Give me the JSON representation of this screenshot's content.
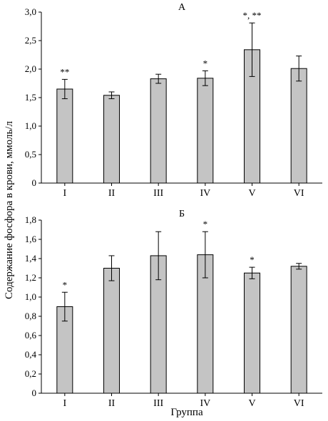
{
  "shared": {
    "ylabel": "Содержание фосфора в крови, ммоль/л",
    "xlabel": "Группа",
    "colors": {
      "bar_fill": "#c4c4c4",
      "bar_stroke": "#000000",
      "axis": "#000000"
    }
  },
  "chart_data": [
    {
      "type": "bar",
      "title": "А",
      "categories": [
        "I",
        "II",
        "III",
        "IV",
        "V",
        "VI"
      ],
      "values": [
        1.65,
        1.54,
        1.83,
        1.84,
        2.34,
        2.01
      ],
      "error": [
        0.17,
        0.06,
        0.08,
        0.13,
        0.47,
        0.22
      ],
      "annotations": [
        "**",
        "",
        "",
        "*",
        "*, **",
        ""
      ],
      "ylim": [
        0,
        3.0
      ],
      "yticks": [
        "0",
        "0,5",
        "1,0",
        "1,5",
        "2,0",
        "2,5",
        "3,0"
      ],
      "ytick_values": [
        0,
        0.5,
        1.0,
        1.5,
        2.0,
        2.5,
        3.0
      ]
    },
    {
      "type": "bar",
      "title": "Б",
      "categories": [
        "I",
        "II",
        "III",
        "IV",
        "V",
        "VI"
      ],
      "values": [
        0.9,
        1.3,
        1.43,
        1.44,
        1.25,
        1.32
      ],
      "error": [
        0.15,
        0.13,
        0.25,
        0.24,
        0.06,
        0.03
      ],
      "annotations": [
        "*",
        "",
        "",
        "*",
        "*",
        ""
      ],
      "ylim": [
        0,
        1.8
      ],
      "yticks": [
        "0",
        "0,2",
        "0,4",
        "0,6",
        "0,8",
        "1,0",
        "1,2",
        "1,4",
        "1,6",
        "1,8"
      ],
      "ytick_values": [
        0,
        0.2,
        0.4,
        0.6,
        0.8,
        1.0,
        1.2,
        1.4,
        1.6,
        1.8
      ]
    }
  ]
}
